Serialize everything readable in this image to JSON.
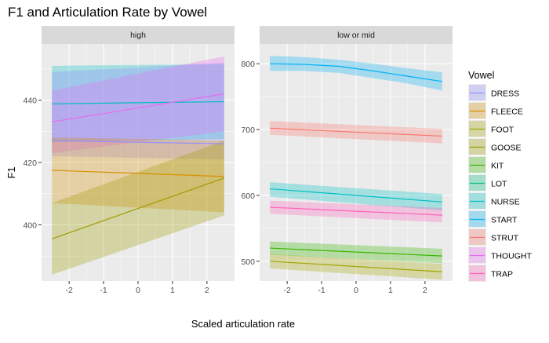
{
  "chart_data": {
    "type": "line",
    "title": "F1 and Articulation Rate by Vowel",
    "xlabel": "Scaled articulation rate",
    "ylabel": "F1",
    "legend_title": "Vowel",
    "legend_position": "right",
    "grid": true,
    "x_ticks": [
      -2,
      -1,
      0,
      1,
      2
    ],
    "vowels": [
      {
        "name": "DRESS",
        "color": "#9590FF"
      },
      {
        "name": "FLEECE",
        "color": "#D89000"
      },
      {
        "name": "FOOT",
        "color": "#A3A500"
      },
      {
        "name": "GOOSE",
        "color": "#9F9A00"
      },
      {
        "name": "KIT",
        "color": "#39B600"
      },
      {
        "name": "LOT",
        "color": "#00BF7D"
      },
      {
        "name": "NURSE",
        "color": "#00BFC4"
      },
      {
        "name": "START",
        "color": "#00B0F6"
      },
      {
        "name": "STRUT",
        "color": "#F8766D"
      },
      {
        "name": "THOUGHT",
        "color": "#E76BF3"
      },
      {
        "name": "TRAP",
        "color": "#FF62BC"
      }
    ],
    "panels": [
      {
        "label": "high",
        "xlim": [
          -2.8,
          2.8
        ],
        "ylim": [
          382,
          458
        ],
        "y_ticks": [
          400,
          420,
          440
        ],
        "series": [
          {
            "name": "NURSE",
            "x": [
              -2.5,
              2.5
            ],
            "y": [
              438.8,
              439.5
            ],
            "lower": [
              426.5,
              427.5
            ],
            "upper": [
              451,
              451.5
            ]
          },
          {
            "name": "DRESS",
            "x": [
              -2.5,
              2.5
            ],
            "y": [
              427,
              426
            ],
            "lower": [
              422,
              421
            ],
            "upper": [
              449,
              452
            ]
          },
          {
            "name": "THOUGHT",
            "x": [
              -2.5,
              2.5
            ],
            "y": [
              433,
              442
            ],
            "lower": [
              423,
              430
            ],
            "upper": [
              443,
              454
            ]
          },
          {
            "name": "FLEECE",
            "x": [
              -2.5,
              2.5
            ],
            "y": [
              417.5,
              415.5
            ],
            "lower": [
              407,
              404
            ],
            "upper": [
              428,
              427
            ]
          },
          {
            "name": "GOOSE",
            "x": [
              -2.5,
              2.5
            ],
            "y": [
              395.5,
              415
            ],
            "lower": [
              384,
              403
            ],
            "upper": [
              407,
              427
            ]
          }
        ]
      },
      {
        "label": "low or mid",
        "xlim": [
          -2.8,
          2.8
        ],
        "ylim": [
          470,
          830
        ],
        "y_ticks": [
          500,
          600,
          700,
          800
        ],
        "series": [
          {
            "name": "START",
            "x": [
              -2.5,
              -1.5,
              -0.5,
              0.5,
              1.5,
              2.5
            ],
            "y": [
              800,
              799,
              796,
              789,
              781,
              773
            ],
            "lower": [
              789,
              789,
              786,
              778,
              770,
              759
            ],
            "upper": [
              812,
              810,
              806,
              800,
              793,
              787
            ]
          },
          {
            "name": "STRUT",
            "x": [
              -2.5,
              2.5
            ],
            "y": [
              702,
              690
            ],
            "lower": [
              692,
              679
            ],
            "upper": [
              713,
              701
            ]
          },
          {
            "name": "NURSE",
            "x": [
              -2.5,
              2.5
            ],
            "y": [
              610,
              590
            ],
            "lower": [
              598,
              577
            ],
            "upper": [
              620,
              602
            ]
          },
          {
            "name": "TRAP",
            "x": [
              -2.5,
              2.5
            ],
            "y": [
              582,
              570
            ],
            "lower": [
              572,
              559
            ],
            "upper": [
              592,
              581
            ]
          },
          {
            "name": "KIT",
            "x": [
              -2.5,
              2.5
            ],
            "y": [
              520,
              508
            ],
            "lower": [
              510,
              497
            ],
            "upper": [
              530,
              519
            ]
          },
          {
            "name": "FOOT",
            "x": [
              -2.5,
              2.5
            ],
            "y": [
              500,
              484
            ],
            "lower": [
              489,
              472
            ],
            "upper": [
              511,
              496
            ]
          }
        ]
      }
    ]
  }
}
